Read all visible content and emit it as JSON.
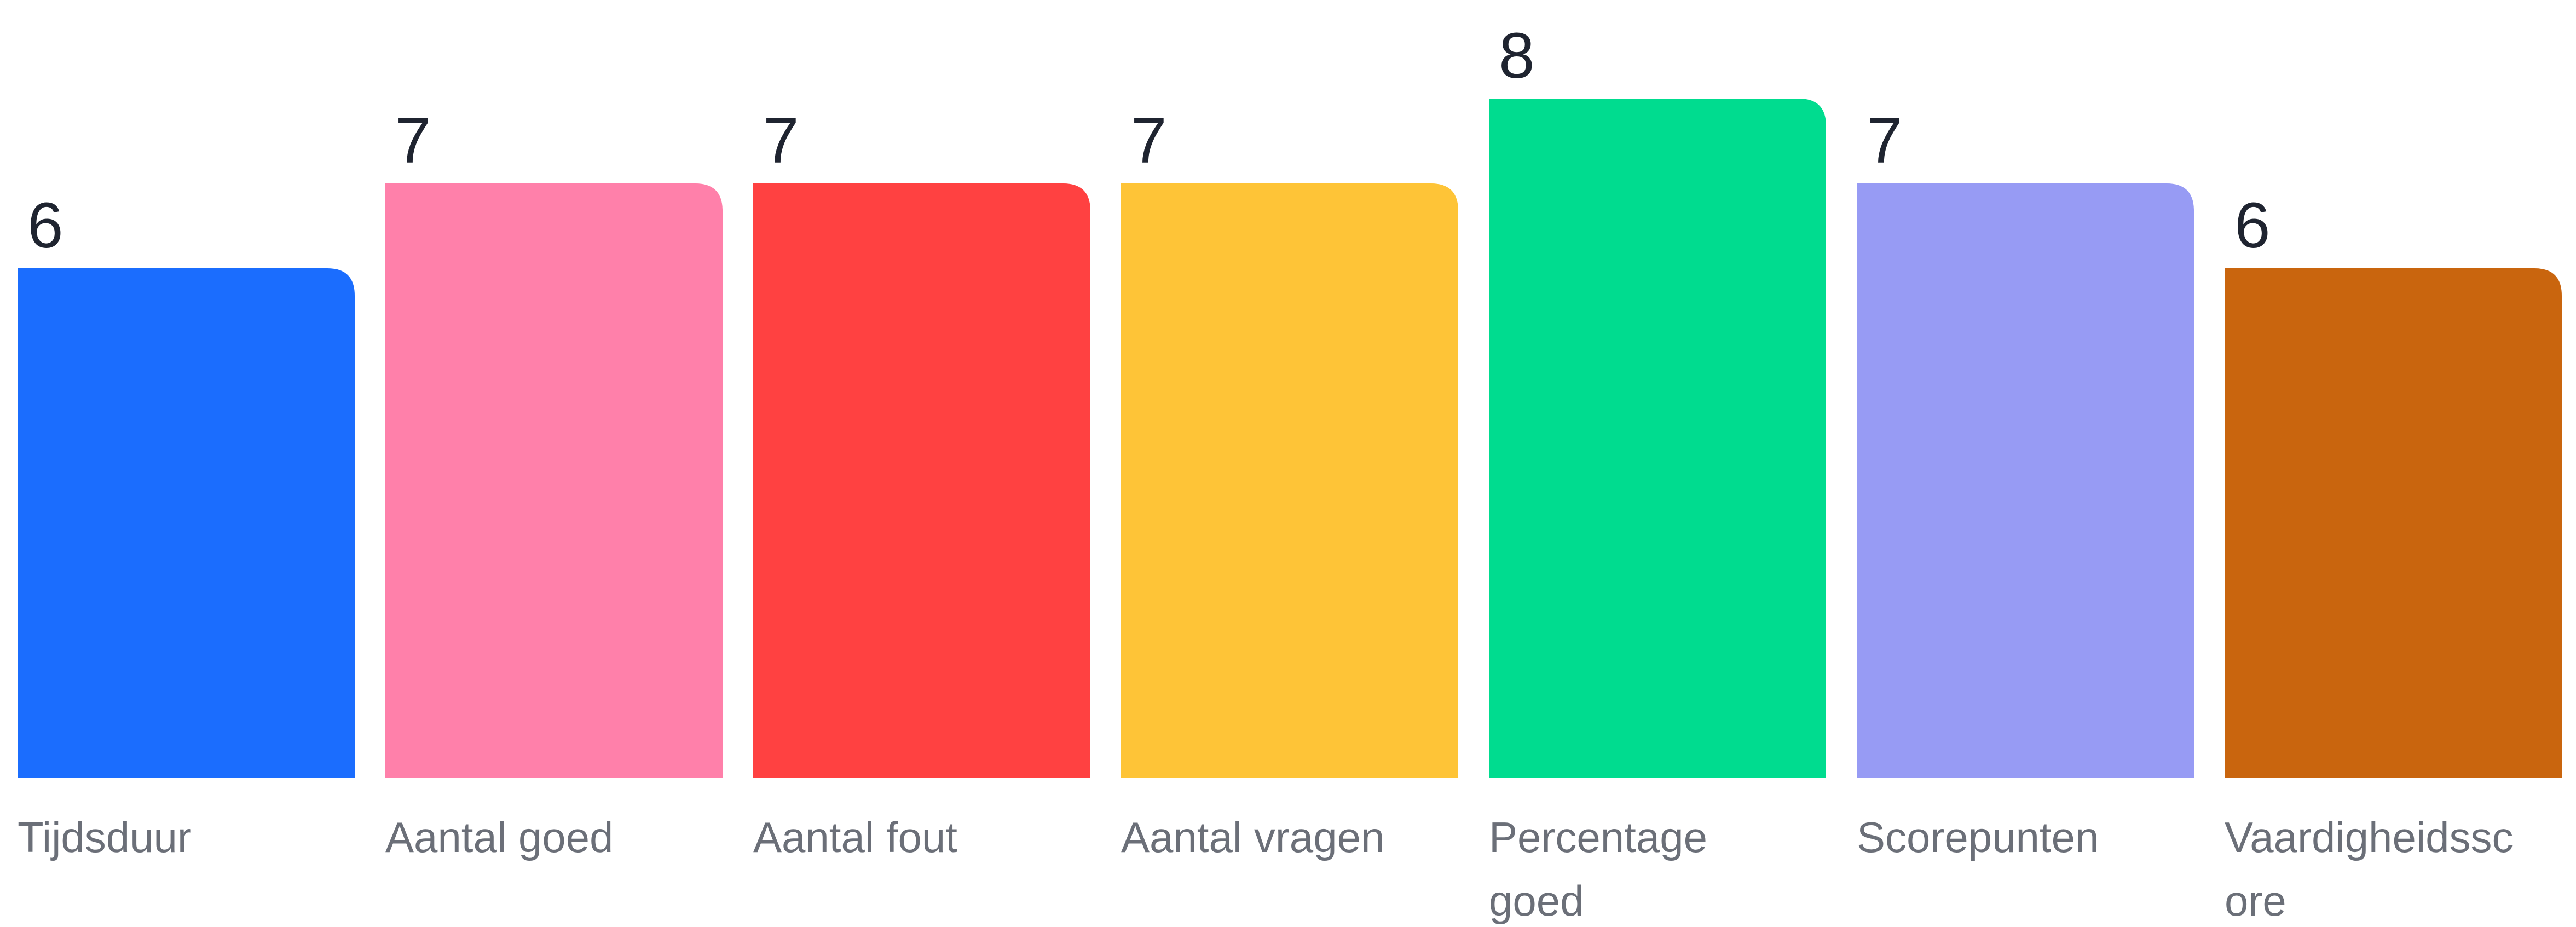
{
  "chart_data": {
    "type": "bar",
    "categories": [
      "Tijdsduur",
      "Aantal goed",
      "Aantal fout",
      "Aantal vragen",
      "Percentage goed",
      "Scorepunten",
      "Vaardigheidsscore"
    ],
    "category_display_lines": [
      [
        "Tijdsduur"
      ],
      [
        "Aantal goed"
      ],
      [
        "Aantal fout"
      ],
      [
        "Aantal vragen"
      ],
      [
        "Percentage",
        "goed"
      ],
      [
        "Scorepunten"
      ],
      [
        "Vaardigheidssc",
        "ore"
      ]
    ],
    "values": [
      6,
      7,
      7,
      7,
      8,
      7,
      6
    ],
    "colors": [
      "#1b6dfe",
      "#ff80aa",
      "#ff4141",
      "#fec437",
      "#00dc8f",
      "#979bf4",
      "#c9650e"
    ],
    "value_labels_shown": true,
    "grid": false,
    "legend": "none",
    "title": "",
    "xlabel": "",
    "ylabel": ""
  }
}
